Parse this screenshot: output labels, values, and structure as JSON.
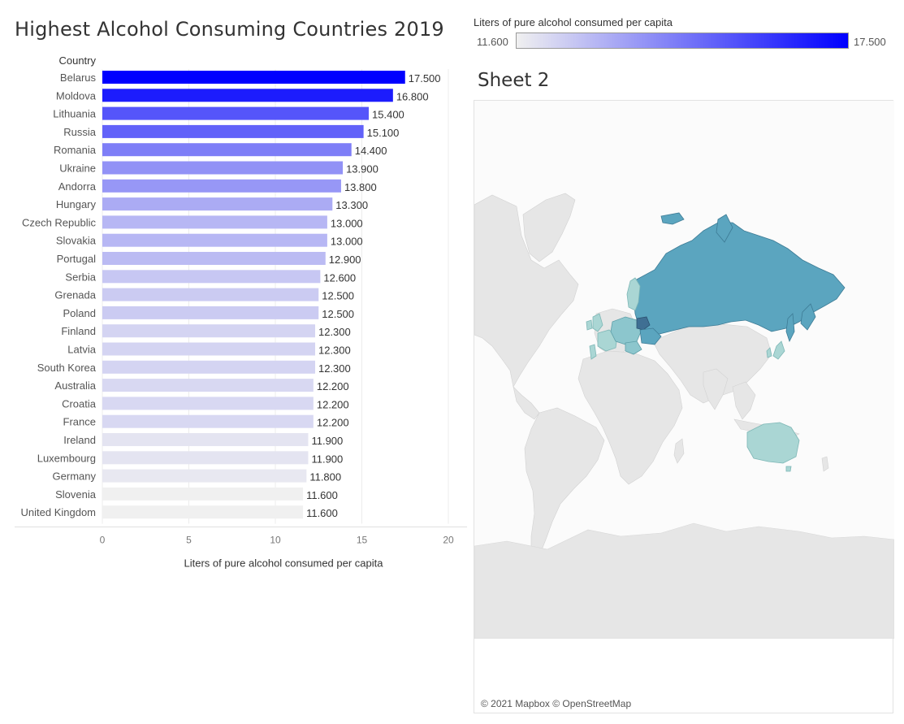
{
  "title": "Highest Alcohol Consuming Countries 2019",
  "sheet2_title": "Sheet 2",
  "legend": {
    "title": "Liters of pure alcohol consumed per capita",
    "min_label": "11.600",
    "max_label": "17.500",
    "min_color": "#f0f0f0",
    "max_color": "#0000ff"
  },
  "map": {
    "credit": "© 2021 Mapbox © OpenStreetMap",
    "land_color": "#e6e6e6",
    "ocean_color": "#fbfbfb",
    "highlight_colors": {
      "low": "#aad6d4",
      "mid": "#5ba5bf",
      "high": "#3f6f93"
    }
  },
  "chart_data": {
    "type": "bar",
    "orientation": "horizontal",
    "row_header": "Country",
    "xlabel": "Liters of pure alcohol consumed per capita",
    "xlim": [
      0,
      20
    ],
    "xticks": [
      0,
      5,
      10,
      15,
      20
    ],
    "grid": true,
    "categories": [
      "Belarus",
      "Moldova",
      "Lithuania",
      "Russia",
      "Romania",
      "Ukraine",
      "Andorra",
      "Hungary",
      "Czech Republic",
      "Slovakia",
      "Portugal",
      "Serbia",
      "Grenada",
      "Poland",
      "Finland",
      "Latvia",
      "South Korea",
      "Australia",
      "Croatia",
      "France",
      "Ireland",
      "Luxembourg",
      "Germany",
      "Slovenia",
      "United Kingdom"
    ],
    "values": [
      17.5,
      16.8,
      15.4,
      15.1,
      14.4,
      13.9,
      13.8,
      13.3,
      13.0,
      13.0,
      12.9,
      12.6,
      12.5,
      12.5,
      12.3,
      12.3,
      12.3,
      12.2,
      12.2,
      12.2,
      11.9,
      11.9,
      11.8,
      11.6,
      11.6
    ],
    "value_labels": [
      "17.500",
      "16.800",
      "15.400",
      "15.100",
      "14.400",
      "13.900",
      "13.800",
      "13.300",
      "13.000",
      "13.000",
      "12.900",
      "12.600",
      "12.500",
      "12.500",
      "12.300",
      "12.300",
      "12.300",
      "12.200",
      "12.200",
      "12.200",
      "11.900",
      "11.900",
      "11.800",
      "11.600",
      "11.600"
    ]
  }
}
